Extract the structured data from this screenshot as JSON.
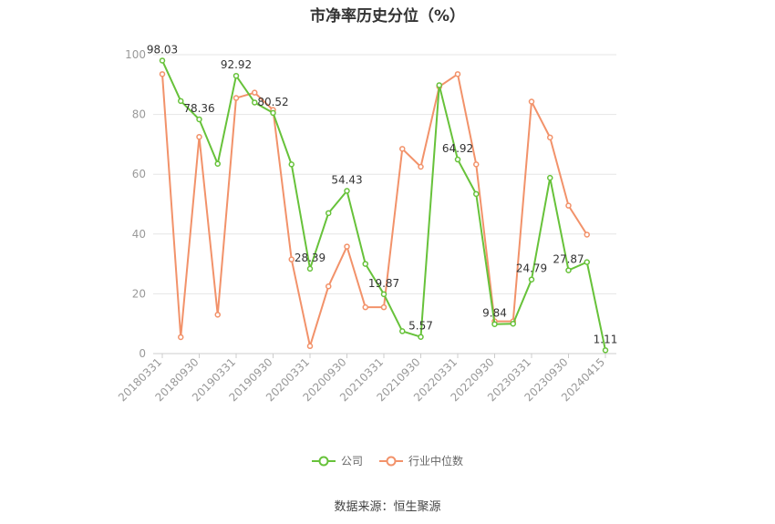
{
  "chart_data": {
    "type": "line",
    "title": "市净率历史分位（%）",
    "ylim": [
      0,
      100
    ],
    "yticks": [
      0,
      20,
      40,
      60,
      80,
      100
    ],
    "grid": true,
    "legend_position": "bottom",
    "x_tick_labels": [
      "20180331",
      "20180930",
      "20190331",
      "20190930",
      "20200331",
      "20200930",
      "20210331",
      "20210930",
      "20220331",
      "20220930",
      "20230331",
      "20230930",
      "20240415"
    ],
    "x": [
      "20180331",
      "20180630",
      "20180930",
      "20181231",
      "20190331",
      "20190630",
      "20190930",
      "20191231",
      "20200331",
      "20200630",
      "20200930",
      "20201231",
      "20210331",
      "20210630",
      "20210930",
      "20211231",
      "20220331",
      "20220630",
      "20220930",
      "20221231",
      "20230331",
      "20230630",
      "20230930",
      "20231231",
      "20240415"
    ],
    "series": [
      {
        "name": "公司",
        "color": "#67c23a",
        "values": [
          98.03,
          84.5,
          78.36,
          63.5,
          92.92,
          84.0,
          80.52,
          63.3,
          28.39,
          47.0,
          54.43,
          30.0,
          19.87,
          7.5,
          5.57,
          89.8,
          64.92,
          53.4,
          9.84,
          10.0,
          24.79,
          58.8,
          27.87,
          30.6,
          1.11
        ]
      },
      {
        "name": "行业中位数",
        "color": "#f2926a",
        "values": [
          93.5,
          5.5,
          72.5,
          13.0,
          85.5,
          87.3,
          81.5,
          31.5,
          2.5,
          22.5,
          35.8,
          15.5,
          15.5,
          68.5,
          62.5,
          89.3,
          93.5,
          63.3,
          10.8,
          10.8,
          84.3,
          72.3,
          49.5,
          39.8,
          null
        ]
      }
    ],
    "data_labels": [
      {
        "series": 0,
        "index": 0,
        "text": "98.03"
      },
      {
        "series": 0,
        "index": 2,
        "text": "78.36"
      },
      {
        "series": 0,
        "index": 4,
        "text": "92.92"
      },
      {
        "series": 0,
        "index": 6,
        "text": "80.52"
      },
      {
        "series": 0,
        "index": 8,
        "text": "28.39"
      },
      {
        "series": 0,
        "index": 10,
        "text": "54.43"
      },
      {
        "series": 0,
        "index": 12,
        "text": "19.87"
      },
      {
        "series": 0,
        "index": 14,
        "text": "5.57"
      },
      {
        "series": 0,
        "index": 16,
        "text": "64.92"
      },
      {
        "series": 0,
        "index": 18,
        "text": "9.84"
      },
      {
        "series": 0,
        "index": 20,
        "text": "24.79"
      },
      {
        "series": 0,
        "index": 22,
        "text": "27.87"
      },
      {
        "series": 0,
        "index": 24,
        "text": "1.11"
      }
    ]
  },
  "legend": {
    "company_label": "公司",
    "industry_label": "行业中位数"
  },
  "source_text": "数据来源：恒生聚源"
}
